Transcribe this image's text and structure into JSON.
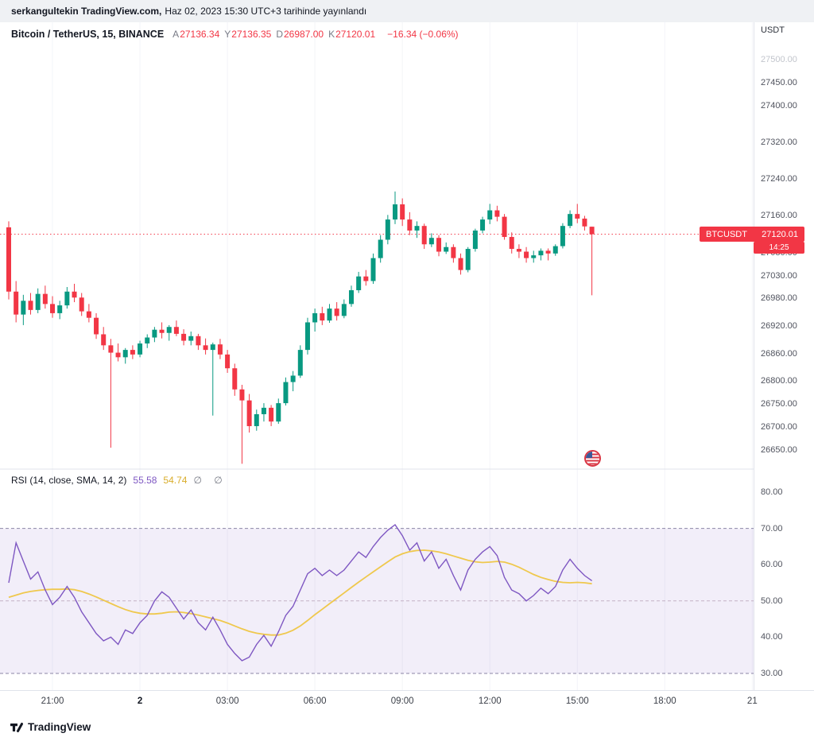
{
  "header": {
    "publisher_bold": "serkangultekin TradingView.com,",
    "publisher_rest": "Haz 02, 2023 15:30 UTC+3 tarihinde yayınlandı"
  },
  "legend": {
    "symbol": "Bitcoin / TetherUS, 15, BINANCE",
    "ohlc": [
      {
        "k": "A",
        "v": "27136.34"
      },
      {
        "k": "Y",
        "v": "27136.35"
      },
      {
        "k": "D",
        "v": "26987.00"
      },
      {
        "k": "K",
        "v": "27120.01"
      }
    ],
    "change": "−16.34 (−0.06%)"
  },
  "price_axis": {
    "currency": "USDT",
    "labels": [
      {
        "text": "27500.00",
        "value": 27500,
        "faded": true
      },
      {
        "text": "27450.00",
        "value": 27450
      },
      {
        "text": "27400.00",
        "value": 27400
      },
      {
        "text": "27320.00",
        "value": 27320
      },
      {
        "text": "27240.00",
        "value": 27240
      },
      {
        "text": "27160.00",
        "value": 27160
      },
      {
        "text": "27080.00",
        "value": 27080
      },
      {
        "text": "27030.00",
        "value": 27030
      },
      {
        "text": "26980.00",
        "value": 26980
      },
      {
        "text": "26920.00",
        "value": 26920
      },
      {
        "text": "26860.00",
        "value": 26860
      },
      {
        "text": "26800.00",
        "value": 26800
      },
      {
        "text": "26750.00",
        "value": 26750
      },
      {
        "text": "26700.00",
        "value": 26700
      },
      {
        "text": "26650.00",
        "value": 26650
      }
    ],
    "badge": {
      "symbol": "BTCUSDT",
      "price": "27120.01",
      "countdown": "14:25"
    }
  },
  "rsi_panel": {
    "legend_title": "RSI (14, close, SMA, 14, 2)",
    "value_rsi": "55.58",
    "value_sma": "54.74",
    "hidden_values": "∅ ∅",
    "axis_labels": [
      {
        "text": "80.00",
        "value": 80
      },
      {
        "text": "70.00",
        "value": 70
      },
      {
        "text": "60.00",
        "value": 60
      },
      {
        "text": "50.00",
        "value": 50
      },
      {
        "text": "40.00",
        "value": 40
      },
      {
        "text": "30.00",
        "value": 30
      }
    ]
  },
  "time_axis": {
    "labels": [
      {
        "text": "21:00",
        "i": 6
      },
      {
        "text": "2",
        "i": 18,
        "emph": true
      },
      {
        "text": "03:00",
        "i": 30
      },
      {
        "text": "06:00",
        "i": 42
      },
      {
        "text": "09:00",
        "i": 54
      },
      {
        "text": "12:00",
        "i": 66
      },
      {
        "text": "15:00",
        "i": 78
      },
      {
        "text": "18:00",
        "i": 90
      },
      {
        "text": "21",
        "i": 102
      }
    ]
  },
  "footer": {
    "brand": "TradingView"
  },
  "colors": {
    "up": "#089981",
    "down": "#f23645",
    "accent_red": "#f23645",
    "rsi_line": "#7e57c2",
    "sma_line": "#efc84d",
    "band_fill": "rgba(126,87,194,0.10)",
    "band_edge": "#8b86a6",
    "band_mid": "#c4b2c6",
    "grid": "#f3f4f8",
    "separator": "#e0e3eb"
  },
  "chart_data": {
    "type": "candlestick",
    "symbol": "BTCUSDT",
    "exchange": "BINANCE",
    "interval_minutes": 15,
    "price_axis_range": [
      26620,
      27560
    ],
    "current_price": 27120.01,
    "candles_ohlc": [
      [
        27135,
        27148,
        26978,
        26995
      ],
      [
        26995,
        27018,
        26928,
        26945
      ],
      [
        26945,
        26988,
        26922,
        26975
      ],
      [
        26975,
        26992,
        26945,
        26955
      ],
      [
        26955,
        27002,
        26948,
        26990
      ],
      [
        26990,
        27008,
        26958,
        26968
      ],
      [
        26968,
        26985,
        26938,
        26948
      ],
      [
        26948,
        26975,
        26935,
        26965
      ],
      [
        26965,
        27005,
        26958,
        26995
      ],
      [
        26995,
        27012,
        26972,
        26982
      ],
      [
        26982,
        26992,
        26942,
        26952
      ],
      [
        26952,
        26968,
        26928,
        26938
      ],
      [
        26938,
        26948,
        26892,
        26902
      ],
      [
        26902,
        26918,
        26868,
        26878
      ],
      [
        26878,
        26892,
        26655,
        26862
      ],
      [
        26862,
        26882,
        26843,
        26852
      ],
      [
        26852,
        26872,
        26838,
        26868
      ],
      [
        26868,
        26878,
        26848,
        26858
      ],
      [
        26858,
        26888,
        26852,
        26882
      ],
      [
        26882,
        26902,
        26872,
        26895
      ],
      [
        26895,
        26918,
        26885,
        26912
      ],
      [
        26912,
        26928,
        26893,
        26905
      ],
      [
        26905,
        26922,
        26888,
        26918
      ],
      [
        26918,
        26932,
        26898,
        26903
      ],
      [
        26903,
        26913,
        26878,
        26888
      ],
      [
        26888,
        26908,
        26878,
        26898
      ],
      [
        26898,
        26903,
        26868,
        26878
      ],
      [
        26878,
        26893,
        26858,
        26868
      ],
      [
        26868,
        26884,
        26725,
        26880
      ],
      [
        26880,
        26892,
        26848,
        26858
      ],
      [
        26858,
        26868,
        26818,
        26828
      ],
      [
        26828,
        26838,
        26768,
        26782
      ],
      [
        26782,
        26792,
        26620,
        26758
      ],
      [
        26758,
        26772,
        26688,
        26702
      ],
      [
        26702,
        26738,
        26692,
        26728
      ],
      [
        26728,
        26752,
        26712,
        26742
      ],
      [
        26742,
        26748,
        26702,
        26712
      ],
      [
        26712,
        26762,
        26707,
        26752
      ],
      [
        26752,
        26808,
        26747,
        26798
      ],
      [
        26798,
        26822,
        26778,
        26812
      ],
      [
        26812,
        26878,
        26807,
        26868
      ],
      [
        26868,
        26938,
        26858,
        26928
      ],
      [
        26928,
        26958,
        26908,
        26948
      ],
      [
        26948,
        26962,
        26922,
        26932
      ],
      [
        26932,
        26968,
        26927,
        26958
      ],
      [
        26958,
        26972,
        26932,
        26942
      ],
      [
        26942,
        26978,
        26937,
        26968
      ],
      [
        26968,
        27008,
        26962,
        26998
      ],
      [
        26998,
        27038,
        26992,
        27028
      ],
      [
        27028,
        27042,
        27008,
        27018
      ],
      [
        27018,
        27078,
        27012,
        27068
      ],
      [
        27068,
        27118,
        27058,
        27108
      ],
      [
        27108,
        27162,
        27098,
        27152
      ],
      [
        27152,
        27213,
        27142,
        27185
      ],
      [
        27185,
        27198,
        27138,
        27152
      ],
      [
        27152,
        27168,
        27118,
        27128
      ],
      [
        27128,
        27148,
        27112,
        27138
      ],
      [
        27138,
        27143,
        27088,
        27098
      ],
      [
        27098,
        27122,
        27092,
        27112
      ],
      [
        27112,
        27118,
        27072,
        27082
      ],
      [
        27082,
        27102,
        27077,
        27092
      ],
      [
        27092,
        27098,
        27058,
        27068
      ],
      [
        27068,
        27078,
        27032,
        27042
      ],
      [
        27042,
        27092,
        27037,
        27088
      ],
      [
        27088,
        27132,
        27082,
        27128
      ],
      [
        27128,
        27158,
        27122,
        27152
      ],
      [
        27152,
        27186,
        27142,
        27172
      ],
      [
        27172,
        27182,
        27148,
        27158
      ],
      [
        27158,
        27164,
        27108,
        27114
      ],
      [
        27114,
        27124,
        27078,
        27088
      ],
      [
        27088,
        27098,
        27068,
        27082
      ],
      [
        27082,
        27092,
        27058,
        27068
      ],
      [
        27068,
        27084,
        27058,
        27074
      ],
      [
        27074,
        27089,
        27063,
        27084
      ],
      [
        27084,
        27089,
        27063,
        27078
      ],
      [
        27078,
        27098,
        27073,
        27094
      ],
      [
        27094,
        27144,
        27089,
        27138
      ],
      [
        27138,
        27172,
        27133,
        27164
      ],
      [
        27164,
        27186,
        27144,
        27154
      ],
      [
        27154,
        27160,
        27128,
        27137
      ],
      [
        27136.34,
        27136.35,
        26987.0,
        27120.01
      ]
    ],
    "rsi": {
      "title": "RSI (14, close, SMA, 14, 2)",
      "range": [
        30,
        80
      ],
      "band": {
        "upper": 70,
        "middle": 50,
        "lower": 30
      },
      "last_rsi": 55.58,
      "last_sma": 54.74,
      "rsi_series": [
        55,
        66,
        61,
        56,
        58,
        53,
        49,
        51,
        54,
        51,
        47,
        44,
        41,
        39,
        40,
        38,
        42,
        41,
        44,
        46,
        50,
        52.5,
        51,
        48,
        45,
        47.5,
        44,
        42,
        45.5,
        42,
        38,
        35.5,
        33.5,
        34.5,
        38,
        40.5,
        37.5,
        41.5,
        46,
        48.5,
        53,
        57.5,
        59,
        57,
        58.5,
        57,
        58.5,
        61,
        63.5,
        62,
        65,
        67.5,
        69.5,
        71,
        68,
        64,
        66,
        61,
        63.5,
        59,
        61.5,
        57,
        53,
        58.5,
        61.5,
        63.5,
        65,
        62.5,
        56.5,
        53,
        52,
        50,
        51.5,
        53.5,
        52,
        54,
        58.5,
        61.5,
        59,
        57,
        55.58
      ],
      "sma_series": [
        51,
        51.6,
        52.2,
        52.6,
        52.9,
        53.1,
        53.2,
        53.2,
        53.3,
        53.1,
        52.6,
        51.9,
        51.1,
        50.2,
        49.3,
        48.4,
        47.6,
        47,
        46.6,
        46.4,
        46.4,
        46.6,
        46.9,
        47,
        46.8,
        46.5,
        46.1,
        45.6,
        45.1,
        44.6,
        43.9,
        43.1,
        42.3,
        41.6,
        41.1,
        40.8,
        40.6,
        40.6,
        41.1,
        41.9,
        43.1,
        44.6,
        46.2,
        47.7,
        49.2,
        50.7,
        52.2,
        53.7,
        55.2,
        56.6,
        58,
        59.4,
        60.8,
        62.1,
        63,
        63.6,
        63.9,
        64,
        63.8,
        63.5,
        63,
        62.4,
        61.8,
        61.2,
        60.8,
        60.6,
        60.7,
        60.9,
        60.7,
        60.1,
        59.3,
        58.3,
        57.3,
        56.5,
        55.9,
        55.4,
        55.1,
        55,
        55.1,
        55,
        54.74
      ]
    }
  }
}
